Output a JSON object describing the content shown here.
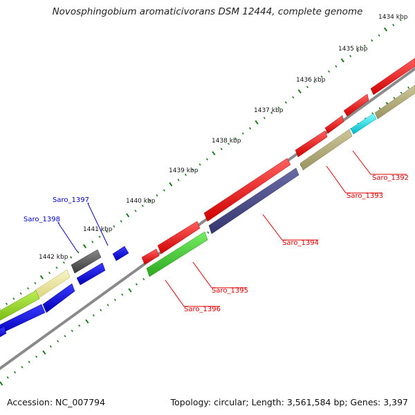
{
  "title": "Novosphingobium aromaticivorans DSM 12444, complete genome",
  "accession_label": "Accession: NC_007794",
  "summary_label": "Topology: circular; Length: 3,561,584 bp; Genes: 3,397",
  "colors": {
    "backbone": "#8a8a8a",
    "ticks": "#1a7a1a",
    "label_red": "#e00000",
    "label_blue": "#0000cc",
    "red": "#ff1010",
    "blue": "#1010e0",
    "khaki": "#b0aa76",
    "navy": "#4a4a8a",
    "green": "#44cc33",
    "lime": "#99dd22",
    "cyan": "#10e0e0",
    "gray": "#555555",
    "paleyellow": "#eee8a0"
  },
  "kbp_ticks": [
    {
      "value": 1434,
      "label": "1434 kbp"
    },
    {
      "value": 1435,
      "label": "1435 kbp"
    },
    {
      "value": 1436,
      "label": "1436 kbp"
    },
    {
      "value": 1437,
      "label": "1437 kbp"
    },
    {
      "value": 1438,
      "label": "1438 kbp"
    },
    {
      "value": 1439,
      "label": "1439 kbp"
    },
    {
      "value": 1440,
      "label": "1440 kbp"
    },
    {
      "value": 1441,
      "label": "1441 kbp"
    },
    {
      "value": 1442,
      "label": "1442 kbp"
    }
  ],
  "gene_labels": [
    {
      "name": "Saro_1392",
      "color": "label_red"
    },
    {
      "name": "Saro_1393",
      "color": "label_red"
    },
    {
      "name": "Saro_1394",
      "color": "label_red"
    },
    {
      "name": "Saro_1395",
      "color": "label_red"
    },
    {
      "name": "Saro_1396",
      "color": "label_red"
    },
    {
      "name": "Saro_1397",
      "color": "label_blue"
    },
    {
      "name": "Saro_1398",
      "color": "label_blue"
    }
  ]
}
